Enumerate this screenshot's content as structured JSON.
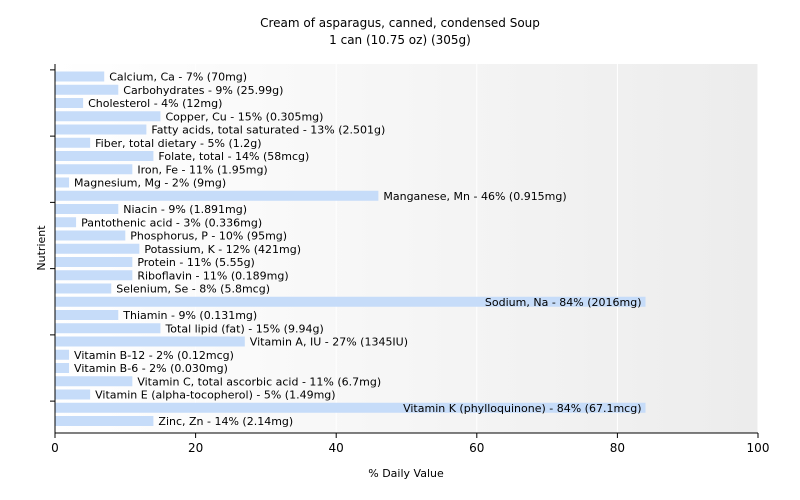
{
  "chart_data": {
    "type": "bar",
    "orientation": "horizontal",
    "title": "Cream of asparagus, canned, condensed Soup",
    "subtitle": "1 can (10.75 oz) (305g)",
    "xlabel": "% Daily Value",
    "ylabel": "Nutrient",
    "xlim": [
      0,
      100
    ],
    "xticks": [
      0,
      20,
      40,
      60,
      80,
      100
    ],
    "bar_color": "#c6dcf9",
    "categories": [
      "Calcium, Ca",
      "Carbohydrates",
      "Cholesterol",
      "Copper, Cu",
      "Fatty acids, total saturated",
      "Fiber, total dietary",
      "Folate, total",
      "Iron, Fe",
      "Magnesium, Mg",
      "Manganese, Mn",
      "Niacin",
      "Pantothenic acid",
      "Phosphorus, P",
      "Potassium, K",
      "Protein",
      "Riboflavin",
      "Selenium, Se",
      "Sodium, Na",
      "Thiamin",
      "Total lipid (fat)",
      "Vitamin A, IU",
      "Vitamin B-12",
      "Vitamin B-6",
      "Vitamin C, total ascorbic acid",
      "Vitamin E (alpha-tocopherol)",
      "Vitamin K (phylloquinone)",
      "Zinc, Zn"
    ],
    "values": [
      7,
      9,
      4,
      15,
      13,
      5,
      14,
      11,
      2,
      46,
      9,
      3,
      10,
      12,
      11,
      11,
      8,
      84,
      9,
      15,
      27,
      2,
      2,
      11,
      5,
      84,
      14
    ],
    "labels": [
      "Calcium, Ca - 7% (70mg)",
      "Carbohydrates - 9% (25.99g)",
      "Cholesterol - 4% (12mg)",
      "Copper, Cu - 15% (0.305mg)",
      "Fatty acids, total saturated - 13% (2.501g)",
      "Fiber, total dietary - 5% (1.2g)",
      "Folate, total - 14% (58mcg)",
      "Iron, Fe - 11% (1.95mg)",
      "Magnesium, Mg - 2% (9mg)",
      "Manganese, Mn - 46% (0.915mg)",
      "Niacin - 9% (1.891mg)",
      "Pantothenic acid - 3% (0.336mg)",
      "Phosphorus, P - 10% (95mg)",
      "Potassium, K - 12% (421mg)",
      "Protein - 11% (5.55g)",
      "Riboflavin - 11% (0.189mg)",
      "Selenium, Se - 8% (5.8mcg)",
      "Sodium, Na - 84% (2016mg)",
      "Thiamin - 9% (0.131mg)",
      "Total lipid (fat) - 15% (9.94g)",
      "Vitamin A, IU - 27% (1345IU)",
      "Vitamin B-12 - 2% (0.12mcg)",
      "Vitamin B-6 - 2% (0.030mg)",
      "Vitamin C, total ascorbic acid - 11% (6.7mg)",
      "Vitamin E (alpha-tocopherol) - 5% (1.49mg)",
      "Vitamin K (phylloquinone) - 84% (67.1mcg)",
      "Zinc, Zn - 14% (2.14mg)"
    ]
  }
}
